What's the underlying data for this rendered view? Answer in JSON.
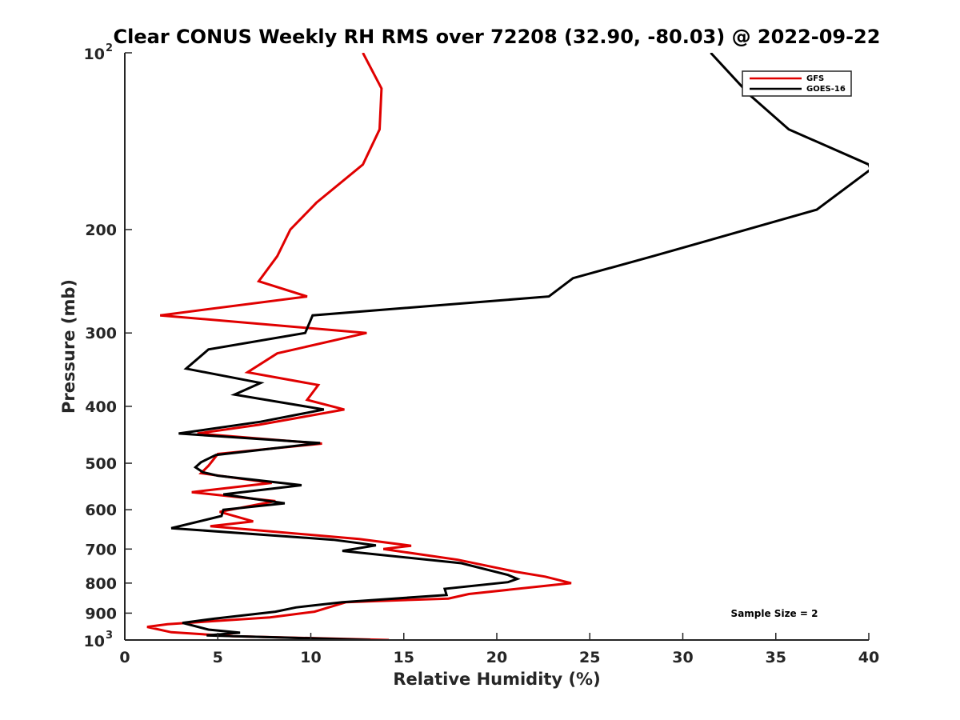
{
  "chart_data": {
    "type": "line",
    "title": "Clear CONUS Weekly RH RMS over 72208 (32.90, -80.03) @ 2022-09-22",
    "xlabel": "Relative Humidity (%)",
    "ylabel": "Pressure (mb)",
    "xlim": [
      0,
      40
    ],
    "ylim": [
      100,
      1000
    ],
    "y_scale": "log",
    "y_reversed": true,
    "grid": false,
    "legend_position": "top-right",
    "x_ticks": [
      0,
      5,
      10,
      15,
      20,
      25,
      30,
      35,
      40
    ],
    "x_tick_labels": [
      "0",
      "5",
      "10",
      "15",
      "20",
      "25",
      "30",
      "35",
      "40"
    ],
    "y_ticks": [
      {
        "value": 100,
        "base": "10",
        "exp": "2"
      },
      {
        "value": 200,
        "label": "200"
      },
      {
        "value": 300,
        "label": "300"
      },
      {
        "value": 400,
        "label": "400"
      },
      {
        "value": 500,
        "label": "500"
      },
      {
        "value": 600,
        "label": "600"
      },
      {
        "value": 700,
        "label": "700"
      },
      {
        "value": 800,
        "label": "800"
      },
      {
        "value": 900,
        "label": "900"
      },
      {
        "value": 1000,
        "base": "10",
        "exp": "3"
      }
    ],
    "annotation": "Sample Size = 2",
    "series": [
      {
        "name": "GFS",
        "color": "#e00000",
        "points": [
          [
            12.8,
            100
          ],
          [
            13.8,
            115
          ],
          [
            13.7,
            135
          ],
          [
            12.8,
            155
          ],
          [
            10.3,
            180
          ],
          [
            8.9,
            200
          ],
          [
            8.2,
            222
          ],
          [
            7.2,
            245
          ],
          [
            9.8,
            260
          ],
          [
            1.9,
            280
          ],
          [
            13.0,
            300
          ],
          [
            8.2,
            325
          ],
          [
            6.6,
            350
          ],
          [
            10.4,
            368
          ],
          [
            9.8,
            390
          ],
          [
            11.8,
            405
          ],
          [
            7.2,
            430
          ],
          [
            3.9,
            445
          ],
          [
            10.6,
            463
          ],
          [
            5.0,
            482
          ],
          [
            4.5,
            505
          ],
          [
            4.1,
            520
          ],
          [
            7.9,
            540
          ],
          [
            3.6,
            560
          ],
          [
            8.1,
            580
          ],
          [
            5.1,
            605
          ],
          [
            6.9,
            628
          ],
          [
            4.6,
            640
          ],
          [
            12.6,
            673
          ],
          [
            15.4,
            691
          ],
          [
            13.9,
            700
          ],
          [
            17.9,
            730
          ],
          [
            21.0,
            765
          ],
          [
            22.6,
            780
          ],
          [
            24.0,
            800
          ],
          [
            18.5,
            835
          ],
          [
            17.4,
            850
          ],
          [
            11.9,
            862
          ],
          [
            10.2,
            895
          ],
          [
            7.8,
            915
          ],
          [
            2.3,
            940
          ],
          [
            1.2,
            950
          ],
          [
            2.5,
            970
          ],
          [
            5.8,
            985
          ],
          [
            14.2,
            1000
          ]
        ]
      },
      {
        "name": "GOES-16",
        "color": "#000000",
        "points": [
          [
            31.5,
            100
          ],
          [
            33.6,
            118
          ],
          [
            35.7,
            135
          ],
          [
            40.0,
            155
          ],
          [
            40.1,
            158
          ],
          [
            37.2,
            185
          ],
          [
            28.4,
            222
          ],
          [
            24.1,
            242
          ],
          [
            22.8,
            260
          ],
          [
            10.1,
            280
          ],
          [
            9.7,
            300
          ],
          [
            4.5,
            320
          ],
          [
            3.3,
            345
          ],
          [
            7.3,
            365
          ],
          [
            5.9,
            382
          ],
          [
            10.7,
            405
          ],
          [
            7.3,
            425
          ],
          [
            2.9,
            445
          ],
          [
            10.5,
            462
          ],
          [
            4.9,
            484
          ],
          [
            4.1,
            498
          ],
          [
            3.8,
            508
          ],
          [
            4.2,
            518
          ],
          [
            5.0,
            525
          ],
          [
            9.5,
            545
          ],
          [
            5.3,
            565
          ],
          [
            8.6,
            585
          ],
          [
            5.3,
            600
          ],
          [
            5.2,
            615
          ],
          [
            2.5,
            645
          ],
          [
            11.2,
            675
          ],
          [
            13.5,
            690
          ],
          [
            11.7,
            705
          ],
          [
            18.1,
            740
          ],
          [
            20.6,
            775
          ],
          [
            21.1,
            787
          ],
          [
            20.6,
            797
          ],
          [
            17.2,
            818
          ],
          [
            17.3,
            838
          ],
          [
            11.7,
            862
          ],
          [
            9.2,
            880
          ],
          [
            8.1,
            895
          ],
          [
            4.8,
            920
          ],
          [
            3.1,
            935
          ],
          [
            4.5,
            960
          ],
          [
            6.2,
            972
          ],
          [
            4.4,
            982
          ],
          [
            13.2,
            1000
          ]
        ]
      }
    ]
  }
}
